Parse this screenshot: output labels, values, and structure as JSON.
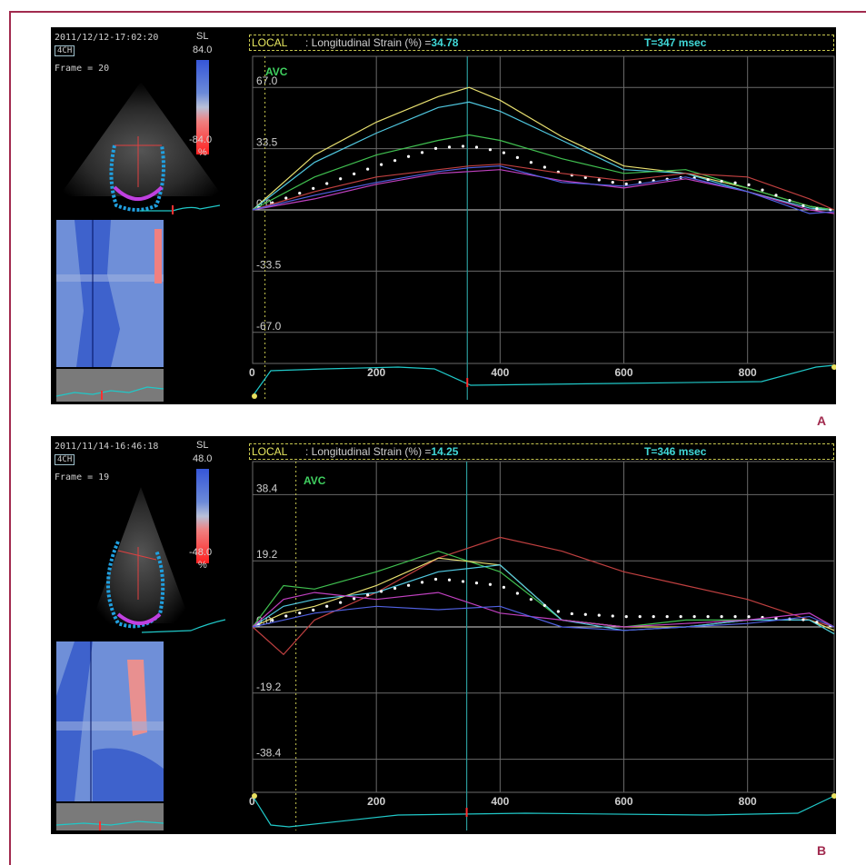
{
  "colors": {
    "frame": "#a12a4e",
    "grid": "#6a6a6a",
    "axis_text": "#cfcfcf",
    "local_label": "#e8e860",
    "value": "#40d8d8",
    "avc": "#40d060"
  },
  "panels": [
    {
      "letter": "A",
      "timestamp": "2011/12/12-17:02:20",
      "view": "4CH",
      "frame": "Frame = 20",
      "scale_label": "SL",
      "scale_max": "84.0",
      "scale_min": "-84.0",
      "scale_unit": "%",
      "header_local": "LOCAL",
      "header_title": ": Longitudinal Strain (%) =",
      "header_value": "34.78",
      "header_time": "T=347 msec",
      "avc_label": "AVC"
    },
    {
      "letter": "B",
      "timestamp": "2011/11/14-16:46:18",
      "view": "4CH",
      "frame": "Frame = 19",
      "scale_label": "SL",
      "scale_max": "48.0",
      "scale_min": "-48.0",
      "scale_unit": "%",
      "header_local": "LOCAL",
      "header_title": ": Longitudinal Strain (%) =",
      "header_value": "14.25",
      "header_time": "T=346 msec",
      "avc_label": "AVC"
    }
  ],
  "chart_data": [
    {
      "type": "line",
      "ylabel": "Longitudinal Strain (%)",
      "xlim": [
        0,
        940
      ],
      "ylim": [
        -84,
        84
      ],
      "yticks": [
        67.0,
        33.5,
        0.0,
        -33.5,
        -67.0
      ],
      "ytick_labels": [
        "67.0",
        "33.5",
        "0.0",
        "-33.5",
        "-67.0"
      ],
      "xticks": [
        0,
        200,
        400,
        600,
        800
      ],
      "xtick_labels": [
        "0",
        "200",
        "400",
        "600",
        "800"
      ],
      "cursor_x": 347,
      "avc_x": 20,
      "series": [
        {
          "color": "#e8e070",
          "x": [
            0,
            100,
            200,
            300,
            350,
            400,
            500,
            600,
            700,
            800,
            900,
            940
          ],
          "y": [
            0,
            30,
            48,
            62,
            67,
            60,
            40,
            24,
            20,
            12,
            2,
            0
          ]
        },
        {
          "color": "#50c8e0",
          "x": [
            0,
            100,
            200,
            300,
            350,
            400,
            500,
            600,
            700,
            800,
            900,
            940
          ],
          "y": [
            0,
            26,
            42,
            56,
            59,
            54,
            38,
            22,
            20,
            10,
            1,
            0
          ]
        },
        {
          "color": "#40c050",
          "x": [
            0,
            100,
            200,
            300,
            350,
            400,
            500,
            600,
            700,
            800,
            900,
            940
          ],
          "y": [
            0,
            18,
            30,
            38,
            41,
            38,
            28,
            20,
            22,
            12,
            2,
            0
          ]
        },
        {
          "color": "#ffffff",
          "dotted": true,
          "x": [
            0,
            100,
            200,
            300,
            350,
            400,
            500,
            600,
            700,
            800,
            900,
            940
          ],
          "y": [
            0,
            12,
            24,
            34,
            35,
            32,
            20,
            14,
            18,
            14,
            1,
            0
          ]
        },
        {
          "color": "#c04040",
          "x": [
            0,
            100,
            200,
            300,
            350,
            400,
            500,
            600,
            700,
            800,
            900,
            940
          ],
          "y": [
            0,
            10,
            18,
            22,
            24,
            25,
            20,
            16,
            20,
            18,
            6,
            0
          ]
        },
        {
          "color": "#c040c0",
          "x": [
            0,
            100,
            200,
            300,
            350,
            400,
            500,
            600,
            700,
            800,
            900,
            940
          ],
          "y": [
            0,
            6,
            14,
            20,
            21,
            22,
            16,
            12,
            17,
            10,
            0,
            -2
          ]
        },
        {
          "color": "#5060e0",
          "x": [
            0,
            100,
            200,
            300,
            350,
            400,
            500,
            600,
            700,
            800,
            900,
            940
          ],
          "y": [
            0,
            8,
            15,
            21,
            23,
            24,
            15,
            13,
            18,
            10,
            -2,
            -1
          ]
        }
      ]
    },
    {
      "type": "line",
      "ylabel": "Longitudinal Strain (%)",
      "xlim": [
        0,
        940
      ],
      "ylim": [
        -48,
        48
      ],
      "yticks": [
        38.4,
        19.2,
        0.0,
        -19.2,
        -38.4
      ],
      "ytick_labels": [
        "38.4",
        "19.2",
        "0.0",
        "-19.2",
        "-38.4"
      ],
      "xticks": [
        0,
        200,
        400,
        600,
        800
      ],
      "xtick_labels": [
        "0",
        "200",
        "400",
        "600",
        "800"
      ],
      "cursor_x": 346,
      "avc_x": 70,
      "series": [
        {
          "color": "#c04040",
          "x": [
            0,
            50,
            100,
            200,
            300,
            400,
            500,
            600,
            700,
            800,
            900,
            940
          ],
          "y": [
            0,
            -8,
            2,
            10,
            20,
            26,
            22,
            16,
            12,
            8,
            2,
            0
          ]
        },
        {
          "color": "#40c050",
          "x": [
            0,
            50,
            100,
            200,
            300,
            400,
            500,
            600,
            700,
            800,
            900,
            940
          ],
          "y": [
            0,
            12,
            11,
            16,
            22,
            16,
            2,
            0,
            2,
            2,
            2,
            -2
          ]
        },
        {
          "color": "#e8e070",
          "x": [
            0,
            50,
            100,
            200,
            300,
            400,
            500,
            600,
            700,
            800,
            900,
            940
          ],
          "y": [
            0,
            4,
            6,
            12,
            20,
            18,
            2,
            0,
            0,
            2,
            2,
            -1
          ]
        },
        {
          "color": "#50c8e0",
          "x": [
            0,
            50,
            100,
            200,
            300,
            400,
            500,
            600,
            700,
            800,
            900,
            940
          ],
          "y": [
            0,
            6,
            8,
            10,
            16,
            18,
            2,
            -1,
            0,
            2,
            2,
            -2
          ]
        },
        {
          "color": "#ffffff",
          "dotted": true,
          "x": [
            0,
            50,
            100,
            200,
            300,
            400,
            500,
            600,
            700,
            800,
            900,
            940
          ],
          "y": [
            0,
            3,
            5,
            10,
            14,
            12,
            4,
            3,
            3,
            3,
            2,
            0
          ]
        },
        {
          "color": "#c040c0",
          "x": [
            0,
            50,
            100,
            200,
            300,
            400,
            500,
            600,
            700,
            800,
            900,
            940
          ],
          "y": [
            0,
            8,
            10,
            8,
            10,
            4,
            2,
            0,
            1,
            2,
            4,
            0
          ]
        },
        {
          "color": "#5060e0",
          "x": [
            0,
            50,
            100,
            200,
            300,
            400,
            500,
            600,
            700,
            800,
            900,
            940
          ],
          "y": [
            0,
            2,
            4,
            6,
            5,
            6,
            0,
            -1,
            0,
            1,
            3,
            0
          ]
        }
      ]
    }
  ]
}
